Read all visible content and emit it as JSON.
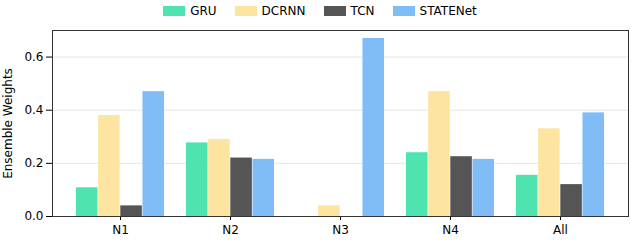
{
  "chart_data": {
    "type": "bar",
    "y_label": "Ensemble Weights",
    "categories": [
      "N1",
      "N2",
      "N3",
      "N4",
      "All"
    ],
    "series": [
      {
        "name": "GRU",
        "color": "#4fe3b0",
        "values": [
          0.108,
          0.277,
          0,
          0.24,
          0.155
        ]
      },
      {
        "name": "DCRNN",
        "color": "#fde4a0",
        "values": [
          0.38,
          0.29,
          0.04,
          0.47,
          0.33
        ]
      },
      {
        "name": "TCN",
        "color": "#555555",
        "values": [
          0.04,
          0.22,
          0,
          0.225,
          0.12
        ]
      },
      {
        "name": "STATENet",
        "color": "#80bdf7",
        "values": [
          0.47,
          0.215,
          0.67,
          0.215,
          0.39
        ]
      }
    ],
    "ylim": [
      0,
      0.7
    ],
    "yticks": [
      {
        "value": 0,
        "label": "0.0"
      },
      {
        "value": 0.2,
        "label": "0.2"
      },
      {
        "value": 0.4,
        "label": "0.4"
      },
      {
        "value": 0.6,
        "label": "0.6"
      }
    ],
    "grid": true,
    "legend": "top"
  }
}
